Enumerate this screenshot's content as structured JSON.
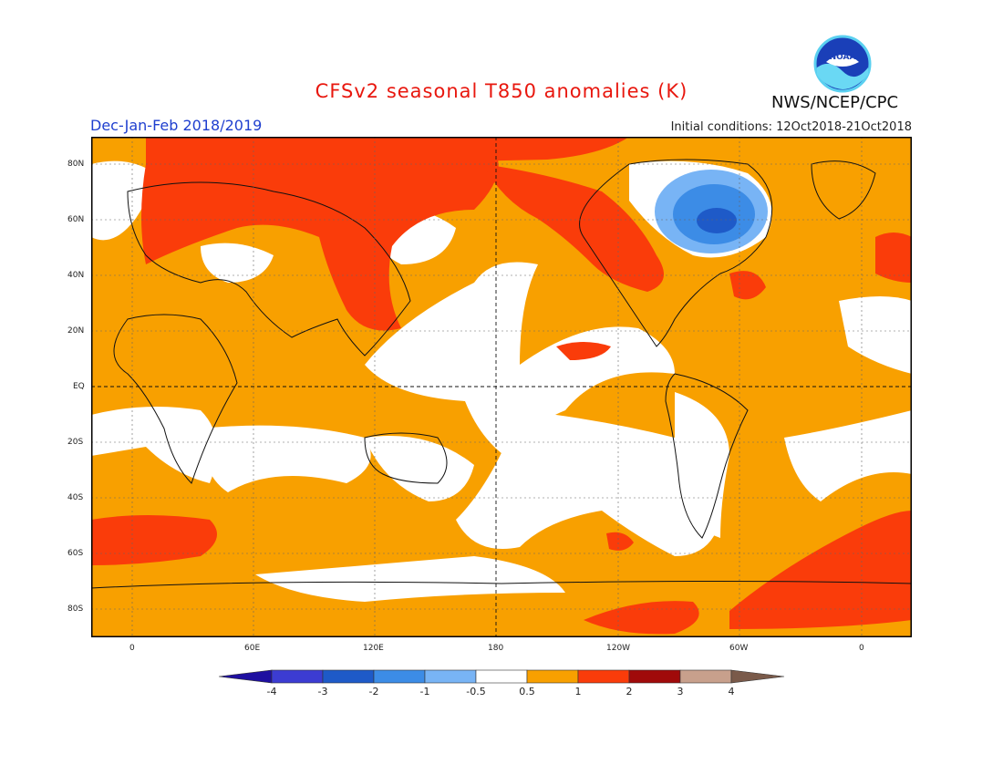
{
  "header": {
    "title": "CFSv2 seasonal T850 anomalies (K)",
    "season": "Dec-Jan-Feb 2018/2019",
    "initial_conditions": "Initial conditions: 12Oct2018-21Oct2018",
    "agency": "NWS/NCEP/CPC",
    "logo_text": "NOAA"
  },
  "map": {
    "lat_labels": [
      "80N",
      "60N",
      "40N",
      "20N",
      "EQ",
      "20S",
      "40S",
      "60S",
      "80S"
    ],
    "lon_labels": [
      "0",
      "60E",
      "120E",
      "180",
      "120W",
      "60W",
      "0"
    ],
    "colors": {
      "white": "#ffffff",
      "orange": "#f8a000",
      "red": "#fa3c0a",
      "blue_light": "#78b4f5",
      "blue_mid": "#3c8ce6",
      "blue_dark": "#1e5ac8"
    }
  },
  "legend": {
    "labels": [
      "-4",
      "-3",
      "-2",
      "-1",
      "-0.5",
      "0.5",
      "1",
      "2",
      "3",
      "4"
    ],
    "colors": [
      "#1e0fa0",
      "#3c3cd2",
      "#1e5ac8",
      "#3c8ce6",
      "#78b4f5",
      "#ffffff",
      "#f8a000",
      "#fa3c0a",
      "#a00a0a",
      "#c8a08c",
      "#7a5a4a"
    ]
  }
}
